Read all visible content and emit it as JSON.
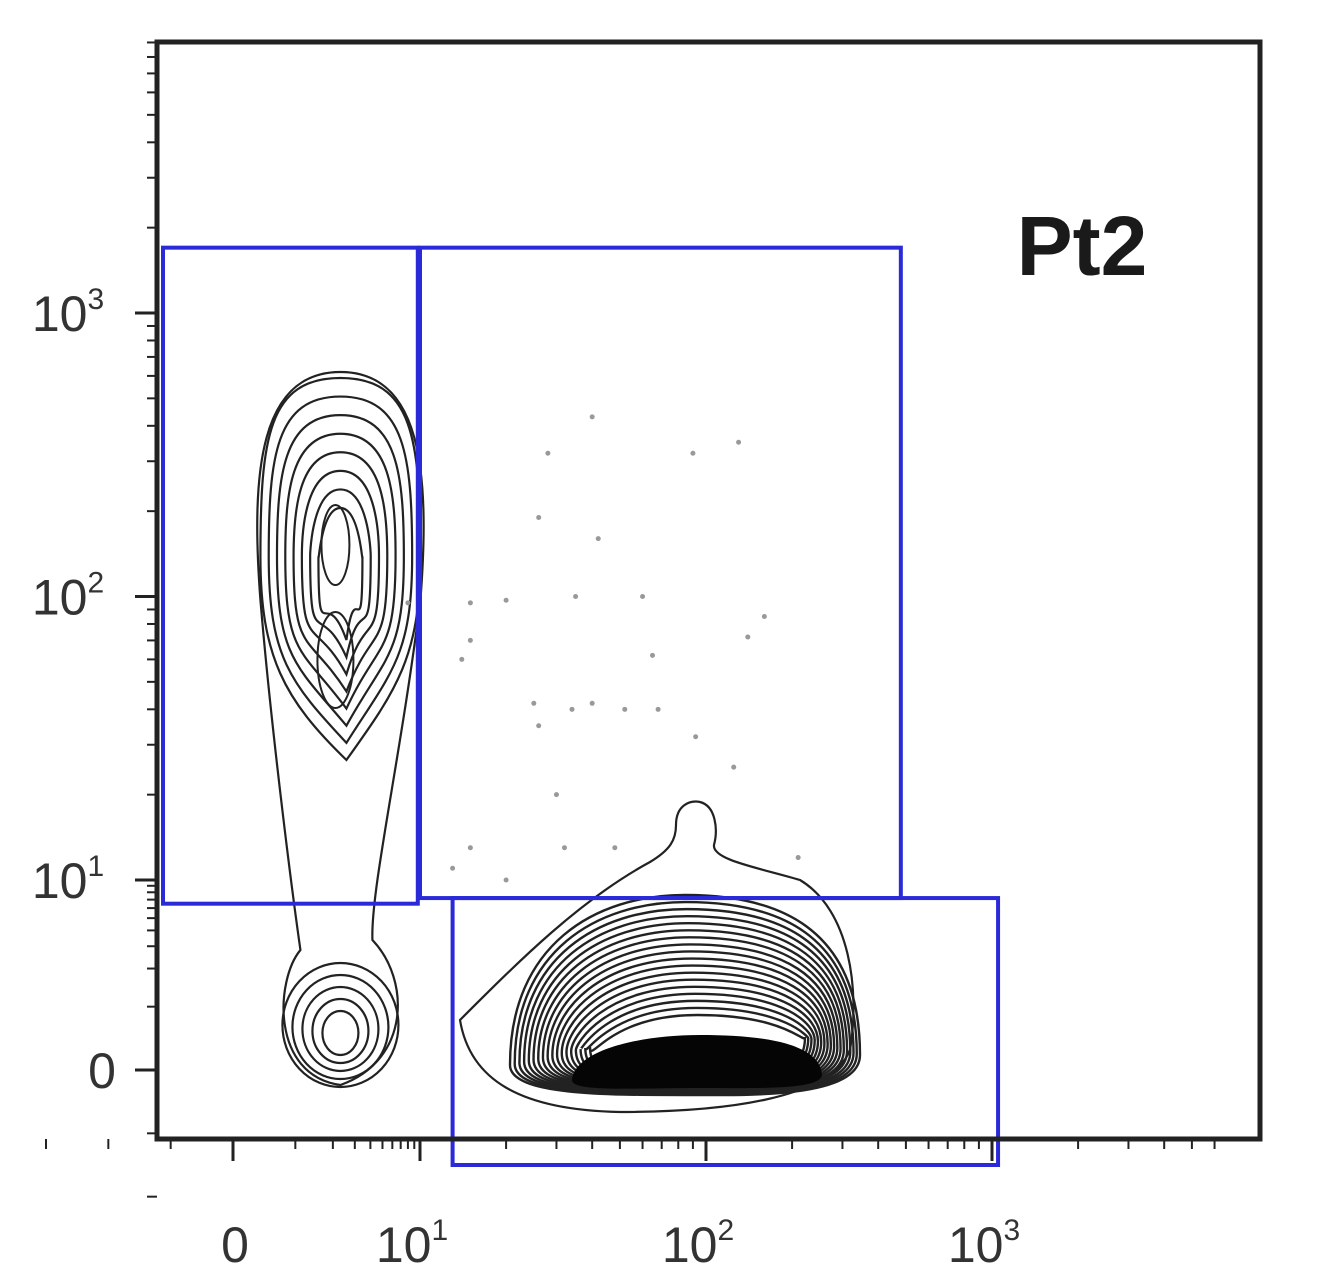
{
  "chart_data": {
    "type": "contour",
    "title": "Pt2",
    "xlabel": "",
    "ylabel": "",
    "x_scale": "biexponential (log with linear region near 0)",
    "y_scale": "biexponential (log with linear region near 0)",
    "xlim": [
      -3,
      6000
    ],
    "ylim": [
      -3,
      9000
    ],
    "x_ticks": [
      {
        "value": 0,
        "base": "0",
        "exp": ""
      },
      {
        "value": 10,
        "base": "10",
        "exp": "1"
      },
      {
        "value": 100,
        "base": "10",
        "exp": "2"
      },
      {
        "value": 1000,
        "base": "10",
        "exp": "3"
      }
    ],
    "y_ticks": [
      {
        "value": 0,
        "base": "0",
        "exp": ""
      },
      {
        "value": 10,
        "base": "10",
        "exp": "1"
      },
      {
        "value": 100,
        "base": "10",
        "exp": "2"
      },
      {
        "value": 1000,
        "base": "10",
        "exp": "3"
      }
    ],
    "gates": [
      {
        "x": [
          -3,
          9.6
        ],
        "y": [
          6.5,
          1700
        ]
      },
      {
        "x": [
          10,
          480
        ],
        "y": [
          7.2,
          1700
        ]
      },
      {
        "x": [
          13,
          1050
        ],
        "y": [
          -1.5,
          7.2
        ]
      }
    ],
    "populations": [
      {
        "center_x": 2.3,
        "center_y": 100,
        "peak_y": 150,
        "spread_x": 1.8,
        "levels": 8
      },
      {
        "center_x": 2.3,
        "center_y": 1.5,
        "spread_x": 1.2,
        "levels": 5
      },
      {
        "center_x": 85,
        "center_y": 2.0,
        "spread_x": 2.4,
        "levels": 18
      }
    ],
    "scatter_points": [
      [
        40,
        430
      ],
      [
        90,
        320
      ],
      [
        130,
        350
      ],
      [
        28,
        320
      ],
      [
        26,
        190
      ],
      [
        42,
        160
      ],
      [
        60,
        100
      ],
      [
        35,
        100
      ],
      [
        20,
        97
      ],
      [
        15,
        95
      ],
      [
        15,
        70
      ],
      [
        14,
        60
      ],
      [
        65,
        62
      ],
      [
        160,
        85
      ],
      [
        140,
        72
      ],
      [
        25,
        42
      ],
      [
        34,
        40
      ],
      [
        40,
        42
      ],
      [
        52,
        40
      ],
      [
        68,
        40
      ],
      [
        26,
        35
      ],
      [
        92,
        32
      ],
      [
        125,
        25
      ],
      [
        30,
        20
      ],
      [
        15,
        13
      ],
      [
        32,
        13
      ],
      [
        48,
        13
      ],
      [
        13,
        11
      ],
      [
        20,
        10
      ],
      [
        210,
        12
      ],
      [
        8,
        95
      ]
    ],
    "colors": {
      "gate": "#2a2ad8",
      "contour": "#222222",
      "dense_core": "#050505",
      "axis": "#222222",
      "dot": "#999999"
    }
  }
}
